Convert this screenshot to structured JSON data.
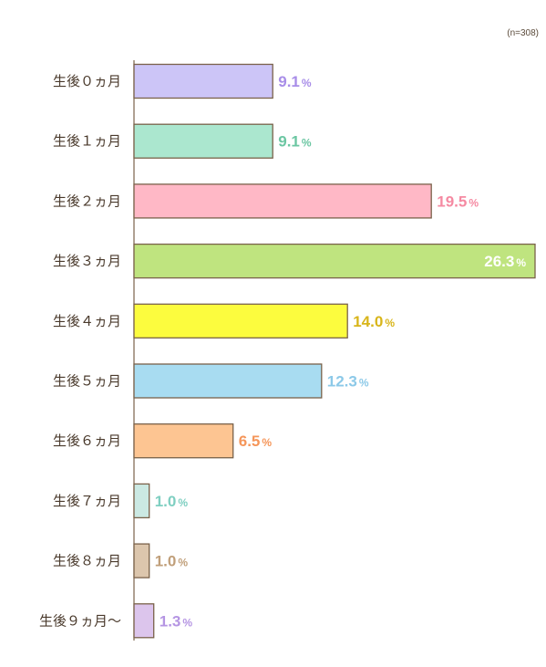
{
  "chart_data": {
    "type": "bar",
    "orientation": "horizontal",
    "note": "(n=308)",
    "unit": "%",
    "categories": [
      "生後０ヵ月",
      "生後１ヵ月",
      "生後２ヵ月",
      "生後３ヵ月",
      "生後４ヵ月",
      "生後５ヵ月",
      "生後６ヵ月",
      "生後７ヵ月",
      "生後８ヵ月",
      "生後９ヵ月〜"
    ],
    "values": [
      9.1,
      9.1,
      19.5,
      26.3,
      14.0,
      12.3,
      6.5,
      1.0,
      1.0,
      1.3
    ],
    "value_labels": [
      "9.1",
      "9.1",
      "19.5",
      "26.3",
      "14.0",
      "12.3",
      "6.5",
      "1.0",
      "1.0",
      "1.3"
    ],
    "bar_colors": [
      "#ccc5f7",
      "#abe7cf",
      "#ffb8c6",
      "#bfe47f",
      "#fcfc3e",
      "#a8dcf1",
      "#fdc592",
      "#cbe9e3",
      "#dcc6ad",
      "#dcc5ec"
    ],
    "label_colors": [
      "#a88de8",
      "#6bc6a2",
      "#f58aa2",
      "#ffffff",
      "#d8b51a",
      "#8cc9e8",
      "#f5965a",
      "#7fcfc1",
      "#c09f7a",
      "#b595e3"
    ],
    "outline_color": "#7a624a",
    "grid": false,
    "legend": "none"
  }
}
